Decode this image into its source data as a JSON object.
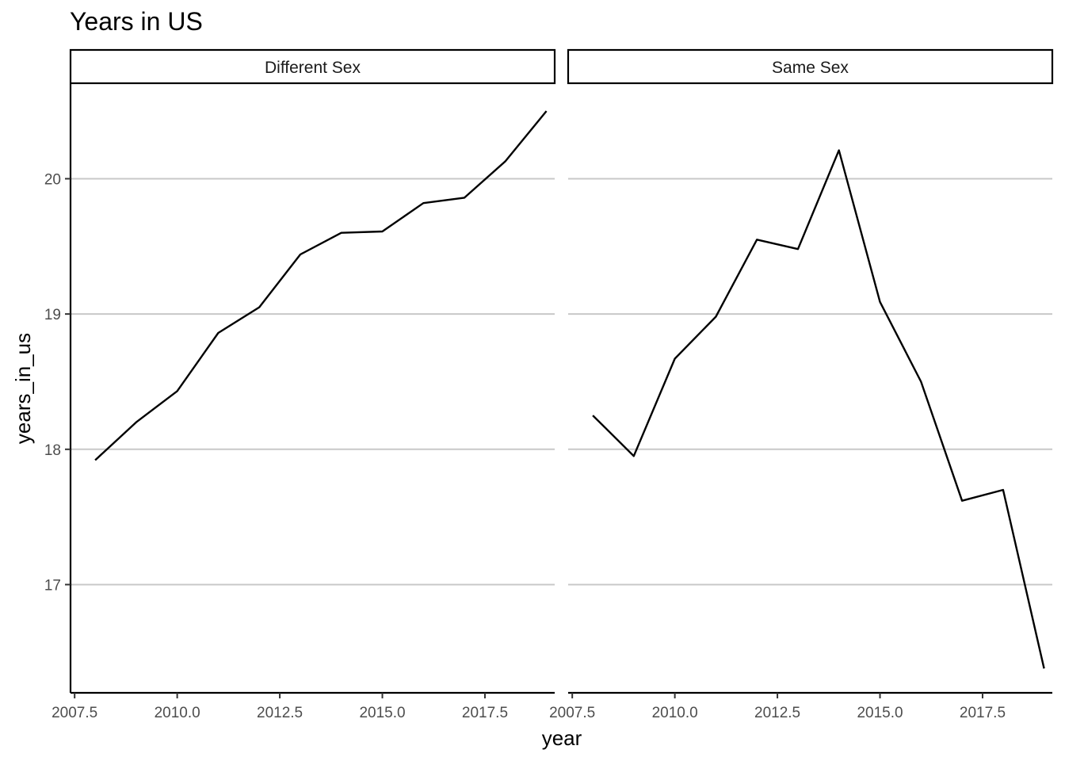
{
  "chart_data": {
    "type": "line",
    "title": "Years in US",
    "xlabel": "year",
    "ylabel": "years_in_us",
    "facet_layout": "1 row, 2 columns, shared axes",
    "grid": "horizontal major lines only",
    "xlim": [
      2007.4,
      2019.2
    ],
    "ylim": [
      16.2,
      20.7
    ],
    "x_ticks": [
      2007.5,
      2010.0,
      2012.5,
      2015.0,
      2017.5
    ],
    "x_tick_labels": [
      "2007.5",
      "2010.0",
      "2012.5",
      "2015.0",
      "2017.5"
    ],
    "y_ticks": [
      17,
      18,
      19,
      20
    ],
    "y_tick_labels": [
      "17",
      "18",
      "19",
      "20"
    ],
    "line_color": "#000000",
    "panels": [
      {
        "label": "Different Sex",
        "x": [
          2008,
          2009,
          2010,
          2011,
          2012,
          2013,
          2014,
          2015,
          2016,
          2017,
          2018,
          2019
        ],
        "y": [
          17.92,
          18.2,
          18.43,
          18.86,
          19.05,
          19.44,
          19.6,
          19.61,
          19.82,
          19.86,
          20.13,
          20.5
        ]
      },
      {
        "label": "Same Sex",
        "x": [
          2008,
          2009,
          2010,
          2011,
          2012,
          2013,
          2014,
          2015,
          2016,
          2017,
          2018,
          2019
        ],
        "y": [
          18.25,
          17.95,
          18.67,
          18.98,
          19.55,
          19.48,
          20.21,
          19.09,
          18.5,
          17.62,
          17.7,
          16.38
        ]
      }
    ]
  }
}
